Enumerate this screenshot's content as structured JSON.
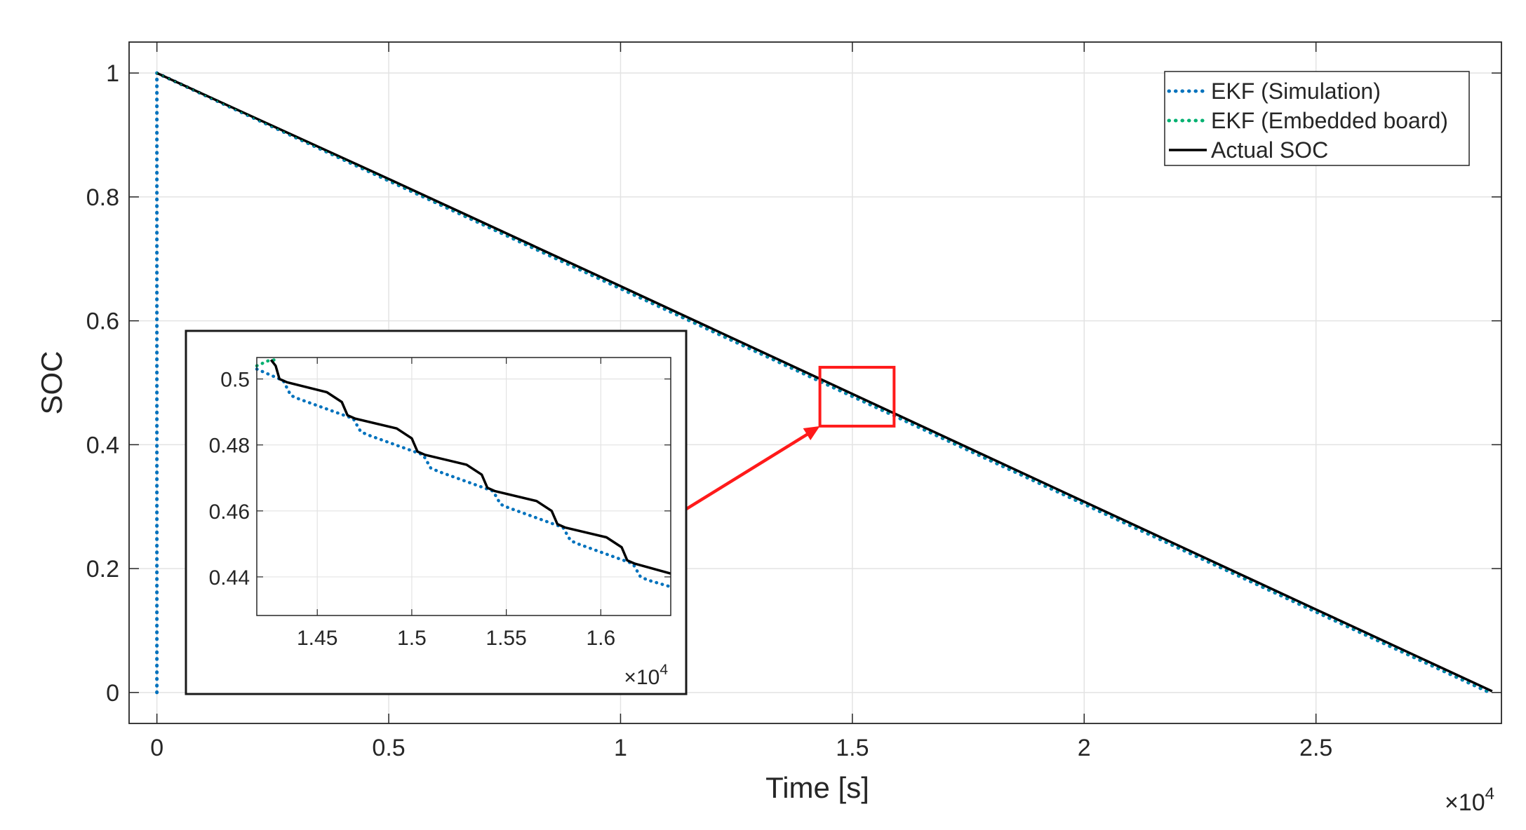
{
  "chart_data": [
    {
      "id": "main",
      "type": "line",
      "title": "",
      "xlabel": "Time [s]",
      "ylabel": "SOC",
      "x_exponent_label": "×10",
      "x_exponent_power": "4",
      "xlim": [
        -0.06,
        2.9
      ],
      "ylim": [
        -0.05,
        1.05
      ],
      "xticks": [
        0,
        0.5,
        1,
        1.5,
        2,
        2.5
      ],
      "xtick_labels": [
        "0",
        "0.5",
        "1",
        "1.5",
        "2",
        "2.5"
      ],
      "yticks": [
        0,
        0.2,
        0.4,
        0.6,
        0.8,
        1
      ],
      "ytick_labels": [
        "0",
        "0.2",
        "0.4",
        "0.6",
        "0.8",
        "1"
      ],
      "grid": true,
      "legend_position": "top-right",
      "series": [
        {
          "name": "EKF (Simulation)",
          "style": "dotted",
          "color": "#0072BD",
          "x": [
            0,
            0,
            0.5,
            1.0,
            1.5,
            2.0,
            2.5,
            2.88
          ],
          "y": [
            0.0,
            1.0,
            0.826,
            0.652,
            0.478,
            0.304,
            0.13,
            -0.002
          ]
        },
        {
          "name": "EKF (Embedded board)",
          "style": "dotted",
          "color": "#00B070",
          "x": [
            0,
            0.5,
            1.0,
            1.5,
            2.0,
            2.5,
            2.88
          ],
          "y": [
            1.0,
            0.826,
            0.652,
            0.478,
            0.304,
            0.13,
            -0.002
          ]
        },
        {
          "name": "Actual SOC",
          "style": "solid",
          "color": "#000000",
          "x": [
            0,
            0.5,
            1.0,
            1.5,
            2.0,
            2.5,
            2.88
          ],
          "y": [
            1.0,
            0.829,
            0.656,
            0.482,
            0.308,
            0.134,
            0.002
          ]
        }
      ],
      "highlight_box": {
        "x": [
          1.43,
          1.59
        ],
        "y": [
          0.43,
          0.525
        ]
      }
    },
    {
      "id": "inset",
      "type": "line",
      "title": "",
      "xlabel": "",
      "ylabel": "",
      "x_exponent_label": "×10",
      "x_exponent_power": "4",
      "xlim": [
        1.418,
        1.637
      ],
      "ylim": [
        0.4283,
        0.5065
      ],
      "xticks": [
        1.45,
        1.5,
        1.55,
        1.6
      ],
      "xtick_labels": [
        "1.45",
        "1.5",
        "1.55",
        "1.6"
      ],
      "yticks": [
        0.44,
        0.46,
        0.48,
        0.5
      ],
      "ytick_labels": [
        "0.44",
        "0.46",
        "0.48",
        "0.5"
      ],
      "grid": true,
      "series": [
        {
          "name": "EKF (Simulation)",
          "style": "dotted",
          "color": "#0072BD",
          "x": [
            1.418,
            1.432,
            1.436,
            1.44,
            1.469,
            1.473,
            1.477,
            1.506,
            1.51,
            1.514,
            1.543,
            1.547,
            1.551,
            1.58,
            1.584,
            1.588,
            1.617,
            1.621,
            1.625,
            1.637
          ],
          "y": [
            0.503,
            0.4995,
            0.495,
            0.494,
            0.488,
            0.484,
            0.483,
            0.477,
            0.473,
            0.472,
            0.466,
            0.462,
            0.461,
            0.455,
            0.451,
            0.45,
            0.444,
            0.44,
            0.439,
            0.437
          ]
        },
        {
          "name": "EKF (Embedded board)",
          "style": "dotted",
          "color": "#00B070",
          "x": [
            1.418,
            1.424,
            1.4275
          ],
          "y": [
            0.504,
            0.5055,
            0.5058
          ]
        },
        {
          "name": "Actual SOC",
          "style": "solid",
          "color": "#000000",
          "x": [
            1.4255,
            1.428,
            1.43,
            1.434,
            1.455,
            1.463,
            1.466,
            1.47,
            1.492,
            1.5,
            1.503,
            1.507,
            1.529,
            1.537,
            1.54,
            1.544,
            1.566,
            1.574,
            1.577,
            1.581,
            1.603,
            1.611,
            1.614,
            1.618,
            1.637
          ],
          "y": [
            0.5058,
            0.504,
            0.5,
            0.499,
            0.496,
            0.493,
            0.489,
            0.488,
            0.485,
            0.482,
            0.478,
            0.477,
            0.474,
            0.471,
            0.467,
            0.466,
            0.463,
            0.46,
            0.456,
            0.455,
            0.452,
            0.449,
            0.445,
            0.444,
            0.441
          ]
        }
      ]
    }
  ]
}
